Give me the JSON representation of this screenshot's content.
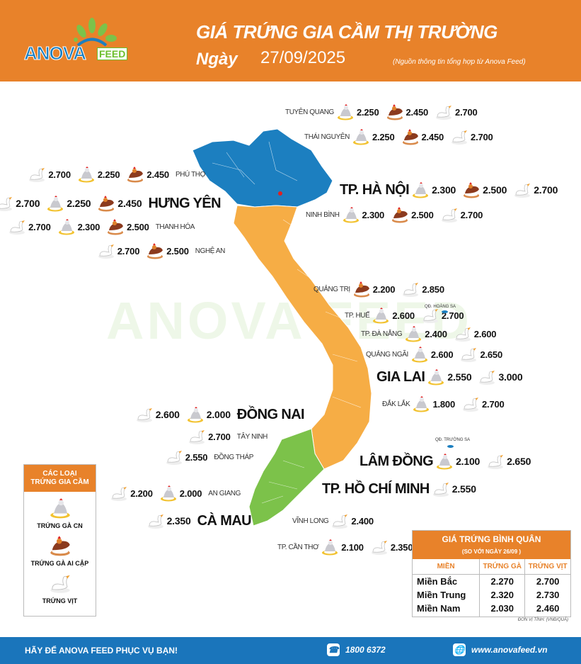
{
  "header": {
    "logo": "ANOVA FEED",
    "title": "GIÁ TRỨNG GIA CẦM THỊ TRƯỜNG",
    "date_label": "Ngày",
    "date_value": "27/09/2025",
    "source": "(Nguồn thông tin tổng hợp từ Anova Feed)"
  },
  "watermark": "ANOVA FEED",
  "colors": {
    "north": "#1c7fc0",
    "central": "#f6ad45",
    "south": "#7cc24a",
    "accent": "#e8822a",
    "footer": "#1a75bb"
  },
  "provinces": [
    {
      "name": "TUYÊN QUANG",
      "big": false,
      "items": [
        {
          "type": "ga-cn",
          "value": "2.250"
        },
        {
          "type": "ga-ai-cap",
          "value": "2.450"
        },
        {
          "type": "vit",
          "value": "2.700"
        }
      ]
    },
    {
      "name": "THÁI NGUYÊN",
      "big": false,
      "items": [
        {
          "type": "ga-cn",
          "value": "2.250"
        },
        {
          "type": "ga-ai-cap",
          "value": "2.450"
        },
        {
          "type": "vit",
          "value": "2.700"
        }
      ]
    },
    {
      "name": "PHÚ THỌ",
      "big": false,
      "items": [
        {
          "type": "vit",
          "value": "2.700"
        },
        {
          "type": "ga-cn",
          "value": "2.250"
        },
        {
          "type": "ga-ai-cap",
          "value": "2.450"
        }
      ]
    },
    {
      "name": "TP. HÀ NỘI",
      "big": true,
      "items": [
        {
          "type": "ga-cn",
          "value": "2.300"
        },
        {
          "type": "ga-ai-cap",
          "value": "2.500"
        },
        {
          "type": "vit",
          "value": "2.700"
        }
      ]
    },
    {
      "name": "HƯNG YÊN",
      "big": true,
      "items": [
        {
          "type": "vit",
          "value": "2.700"
        },
        {
          "type": "ga-cn",
          "value": "2.250"
        },
        {
          "type": "ga-ai-cap",
          "value": "2.450"
        }
      ]
    },
    {
      "name": "NINH BÌNH",
      "big": false,
      "items": [
        {
          "type": "ga-cn",
          "value": "2.300"
        },
        {
          "type": "ga-ai-cap",
          "value": "2.500"
        },
        {
          "type": "vit",
          "value": "2.700"
        }
      ]
    },
    {
      "name": "THANH HÓA",
      "big": false,
      "items": [
        {
          "type": "vit",
          "value": "2.700"
        },
        {
          "type": "ga-cn",
          "value": "2.300"
        },
        {
          "type": "ga-ai-cap",
          "value": "2.500"
        }
      ]
    },
    {
      "name": "NGHỆ AN",
      "big": false,
      "items": [
        {
          "type": "vit",
          "value": "2.700"
        },
        {
          "type": "ga-ai-cap",
          "value": "2.500"
        }
      ]
    },
    {
      "name": "QUẢNG TRỊ",
      "big": false,
      "items": [
        {
          "type": "ga-ai-cap",
          "value": "2.200"
        },
        {
          "type": "vit",
          "value": "2.850"
        }
      ]
    },
    {
      "name": "TP. HUẾ",
      "big": false,
      "items": [
        {
          "type": "ga-cn",
          "value": "2.600"
        },
        {
          "type": "vit",
          "value": "2.700"
        }
      ]
    },
    {
      "name": "TP. ĐÀ NẴNG",
      "big": false,
      "items": [
        {
          "type": "ga-cn",
          "value": "2.400"
        },
        {
          "type": "vit",
          "value": "2.600"
        }
      ]
    },
    {
      "name": "QUẢNG NGÃI",
      "big": false,
      "items": [
        {
          "type": "ga-cn",
          "value": "2.600"
        },
        {
          "type": "vit",
          "value": "2.650"
        }
      ]
    },
    {
      "name": "GIA LAI",
      "big": true,
      "items": [
        {
          "type": "ga-cn",
          "value": "2.550"
        },
        {
          "type": "vit",
          "value": "3.000"
        }
      ]
    },
    {
      "name": "ĐẮK LẮK",
      "big": false,
      "items": [
        {
          "type": "ga-cn",
          "value": "1.800"
        },
        {
          "type": "vit",
          "value": "2.700"
        }
      ]
    },
    {
      "name": "ĐỒNG NAI",
      "big": true,
      "items": [
        {
          "type": "vit",
          "value": "2.600"
        },
        {
          "type": "ga-cn",
          "value": "2.000"
        }
      ]
    },
    {
      "name": "TÂY NINH",
      "big": false,
      "items": [
        {
          "type": "vit",
          "value": "2.700"
        }
      ]
    },
    {
      "name": "ĐỒNG THÁP",
      "big": false,
      "items": [
        {
          "type": "vit",
          "value": "2.550"
        }
      ]
    },
    {
      "name": "LÂM ĐỒNG",
      "big": true,
      "items": [
        {
          "type": "ga-cn",
          "value": "2.100"
        },
        {
          "type": "vit",
          "value": "2.650"
        }
      ]
    },
    {
      "name": "AN GIANG",
      "big": false,
      "items": [
        {
          "type": "vit",
          "value": "2.200"
        },
        {
          "type": "ga-cn",
          "value": "2.000"
        }
      ]
    },
    {
      "name": "TP. HỒ CHÍ MINH",
      "big": true,
      "items": [
        {
          "type": "vit",
          "value": "2.550"
        }
      ]
    },
    {
      "name": "CÀ MAU",
      "big": true,
      "items": [
        {
          "type": "vit",
          "value": "2.350"
        }
      ]
    },
    {
      "name": "VĨNH LONG",
      "big": false,
      "items": [
        {
          "type": "vit",
          "value": "2.400"
        }
      ]
    },
    {
      "name": "TP. CẦN THƠ",
      "big": false,
      "items": [
        {
          "type": "ga-cn",
          "value": "2.100"
        },
        {
          "type": "vit",
          "value": "2.350"
        }
      ]
    }
  ],
  "islands": {
    "hoang_sa": "QĐ. HOÀNG SA",
    "truong_sa": "QĐ. TRƯỜNG SA"
  },
  "legend": {
    "title_line1": "CÁC LOẠI",
    "title_line2": "TRỨNG GIA CẦM",
    "items": [
      {
        "type": "ga-cn",
        "label": "TRỨNG GÀ CN"
      },
      {
        "type": "ga-ai-cap",
        "label": "TRỨNG GÀ AI CẬP"
      },
      {
        "type": "vit",
        "label": "TRỨNG VỊT"
      }
    ]
  },
  "average": {
    "title": "GIÁ TRỨNG BÌNH QUÂN",
    "subtitle": "(SO VỚI NGÀY  26/09  )",
    "headers": [
      "MIỀN",
      "TRỨNG GÀ",
      "TRỨNG VỊT"
    ],
    "rows": [
      [
        "Miền Bắc",
        "2.270",
        "2.700"
      ],
      [
        "Miền Trung",
        "2.320",
        "2.730"
      ],
      [
        "Miền Nam",
        "2.030",
        "2.460"
      ]
    ],
    "unit": "ĐƠN VỊ TÍNH: (VNĐ/QUẢ)"
  },
  "footer": {
    "slogan": "HÃY ĐỂ ANOVA FEED PHỤC VỤ BẠN!",
    "phone": "1800 6372",
    "phone_icon": "phone-icon",
    "website": "www.anovafeed.vn",
    "website_icon": "globe-icon"
  }
}
